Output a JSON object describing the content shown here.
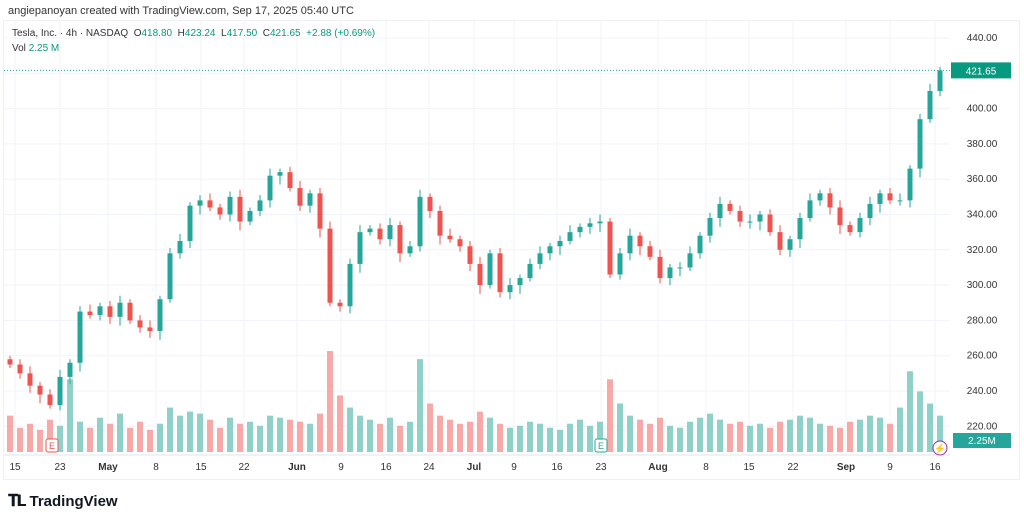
{
  "credit": "angiepanoyan created with TradingView.com, Sep 17, 2025 05:40 UTC",
  "legend": {
    "symbol": "Tesla, Inc. · 4h · NASDAQ",
    "o_label": "O",
    "o": "418.80",
    "h_label": "H",
    "h": "423.24",
    "l_label": "L",
    "l": "417.50",
    "c_label": "C",
    "c": "421.65",
    "change": "+2.88 (+0.69%)",
    "vol_label": "Vol",
    "vol": "2.25 M"
  },
  "logo": "TradingView",
  "colors": {
    "up": "#26a69a",
    "down": "#ef5350",
    "vol_up": "#8fd1c9",
    "vol_down": "#f7a9a7",
    "grid": "#f0f3fa"
  },
  "chart_data": {
    "type": "candlestick",
    "title": "Tesla, Inc. · 4h · NASDAQ",
    "ylim": [
      205,
      450
    ],
    "y_ticks": [
      220,
      240,
      260,
      280,
      300,
      320,
      340,
      360,
      380,
      400,
      420,
      440
    ],
    "y_tick_labels": [
      "220.00",
      "240.00",
      "260.00",
      "280.00",
      "300.00",
      "320.00",
      "340.00",
      "360.00",
      "380.00",
      "400.00",
      "",
      "440.00"
    ],
    "last_price_label": "421.65",
    "last_volume_label": "2.25M",
    "x_tick_labels": [
      "15",
      "23",
      "May",
      "8",
      "15",
      "22",
      "Jun",
      "9",
      "16",
      "24",
      "Jul",
      "9",
      "16",
      "23",
      "Aug",
      "8",
      "15",
      "22",
      "Sep",
      "9",
      "16"
    ],
    "closes": [
      255,
      250,
      243,
      238,
      232,
      248,
      256,
      285,
      283,
      288,
      282,
      290,
      280,
      276,
      274,
      292,
      318,
      325,
      345,
      348,
      344,
      340,
      350,
      336,
      342,
      348,
      362,
      364,
      355,
      345,
      352,
      332,
      290,
      288,
      312,
      330,
      332,
      326,
      334,
      318,
      322,
      350,
      342,
      328,
      326,
      322,
      312,
      300,
      318,
      296,
      300,
      304,
      312,
      318,
      322,
      325,
      330,
      333,
      335,
      336,
      306,
      318,
      328,
      322,
      316,
      304,
      310,
      310,
      318,
      328,
      338,
      346,
      342,
      336,
      336,
      340,
      330,
      320,
      326,
      338,
      348,
      352,
      344,
      334,
      330,
      338,
      346,
      352,
      348,
      348,
      366,
      394,
      410,
      421.65
    ],
    "volumes": [
      90,
      60,
      70,
      55,
      80,
      65,
      180,
      75,
      60,
      85,
      70,
      95,
      60,
      75,
      55,
      70,
      110,
      90,
      100,
      95,
      80,
      60,
      85,
      70,
      75,
      65,
      90,
      85,
      80,
      75,
      70,
      95,
      250,
      140,
      110,
      90,
      80,
      70,
      85,
      65,
      75,
      230,
      120,
      90,
      80,
      70,
      75,
      100,
      85,
      70,
      60,
      65,
      75,
      70,
      60,
      55,
      70,
      80,
      65,
      75,
      180,
      120,
      90,
      80,
      70,
      85,
      65,
      60,
      75,
      85,
      95,
      80,
      70,
      75,
      65,
      70,
      60,
      75,
      80,
      90,
      85,
      70,
      65,
      60,
      75,
      80,
      90,
      85,
      70,
      110,
      200,
      150,
      120,
      90
    ],
    "events": [
      {
        "label": "E",
        "date": "23",
        "type": "earnings-past"
      },
      {
        "label": "E",
        "date": "23",
        "type": "earnings-upcoming"
      }
    ]
  }
}
